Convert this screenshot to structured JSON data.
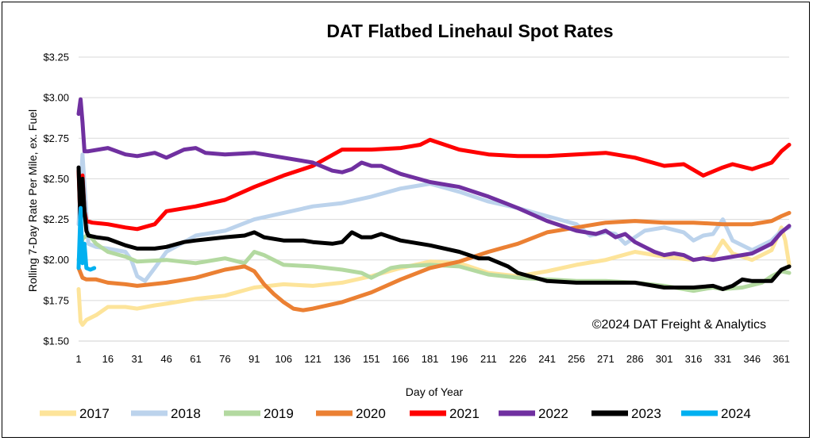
{
  "chart_data": {
    "type": "line",
    "title": "DAT Flatbed Linehaul Spot Rates",
    "xlabel": "Day of Year",
    "ylabel": "Rolling 7-Day Rate Per Mile, ex. Fuel",
    "annotation": "©2024 DAT Freight & Analytics",
    "xlim": [
      1,
      365
    ],
    "ylim": [
      1.5,
      3.25
    ],
    "x_ticks": [
      1,
      16,
      31,
      46,
      61,
      76,
      91,
      106,
      121,
      136,
      151,
      166,
      181,
      196,
      211,
      226,
      241,
      256,
      271,
      286,
      301,
      316,
      331,
      346,
      361
    ],
    "y_ticks": [
      {
        "value": 1.5,
        "label": "$1.50"
      },
      {
        "value": 1.75,
        "label": "$1.75"
      },
      {
        "value": 2.0,
        "label": "$2.00"
      },
      {
        "value": 2.25,
        "label": "$2.25"
      },
      {
        "value": 2.5,
        "label": "$2.50"
      },
      {
        "value": 2.75,
        "label": "$2.75"
      },
      {
        "value": 3.0,
        "label": "$3.00"
      },
      {
        "value": 3.25,
        "label": "$3.25"
      }
    ],
    "grid": true,
    "legend_position": "bottom",
    "series": [
      {
        "name": "2017",
        "color": "#FDE49A",
        "x": [
          1,
          2,
          3,
          5,
          10,
          16,
          25,
          31,
          40,
          46,
          61,
          76,
          91,
          106,
          121,
          136,
          151,
          166,
          181,
          196,
          211,
          226,
          241,
          256,
          271,
          286,
          301,
          316,
          326,
          331,
          336,
          346,
          356,
          361,
          363,
          365
        ],
        "y": [
          1.82,
          1.62,
          1.6,
          1.63,
          1.66,
          1.71,
          1.71,
          1.7,
          1.72,
          1.73,
          1.76,
          1.78,
          1.83,
          1.85,
          1.84,
          1.86,
          1.9,
          1.95,
          1.99,
          1.98,
          1.92,
          1.9,
          1.93,
          1.97,
          2.0,
          2.05,
          2.02,
          2.0,
          2.02,
          2.12,
          2.04,
          2.0,
          2.06,
          2.2,
          2.12,
          1.97
        ]
      },
      {
        "name": "2018",
        "color": "#BCD3EC",
        "x": [
          1,
          3,
          6,
          10,
          16,
          25,
          28,
          31,
          35,
          40,
          46,
          61,
          76,
          91,
          106,
          121,
          136,
          151,
          166,
          181,
          196,
          211,
          226,
          241,
          256,
          263,
          271,
          276,
          281,
          291,
          301,
          311,
          316,
          321,
          326,
          331,
          336,
          346,
          356,
          361,
          365
        ],
        "y": [
          2.22,
          2.65,
          2.1,
          2.08,
          2.07,
          2.05,
          2.0,
          1.9,
          1.87,
          1.95,
          2.05,
          2.15,
          2.18,
          2.25,
          2.29,
          2.33,
          2.35,
          2.39,
          2.44,
          2.47,
          2.42,
          2.36,
          2.32,
          2.27,
          2.22,
          2.15,
          2.17,
          2.16,
          2.1,
          2.18,
          2.2,
          2.17,
          2.12,
          2.15,
          2.16,
          2.25,
          2.12,
          2.06,
          2.12,
          2.18,
          2.2
        ]
      },
      {
        "name": "2019",
        "color": "#B3D9A0",
        "x": [
          1,
          3,
          6,
          10,
          16,
          25,
          31,
          46,
          61,
          76,
          86,
          91,
          96,
          106,
          121,
          136,
          146,
          151,
          161,
          166,
          181,
          196,
          211,
          226,
          241,
          256,
          271,
          286,
          301,
          311,
          316,
          326,
          331,
          341,
          351,
          356,
          361,
          365
        ],
        "y": [
          2.0,
          2.13,
          2.16,
          2.1,
          2.05,
          2.02,
          1.99,
          2.0,
          1.98,
          2.01,
          1.98,
          2.05,
          2.03,
          1.97,
          1.96,
          1.94,
          1.92,
          1.89,
          1.95,
          1.96,
          1.97,
          1.96,
          1.91,
          1.89,
          1.88,
          1.87,
          1.87,
          1.86,
          1.84,
          1.82,
          1.81,
          1.83,
          1.82,
          1.83,
          1.86,
          1.9,
          1.93,
          1.92
        ]
      },
      {
        "name": "2020",
        "color": "#EB8033",
        "x": [
          1,
          3,
          5,
          10,
          16,
          25,
          31,
          46,
          61,
          76,
          86,
          91,
          96,
          101,
          106,
          111,
          116,
          121,
          136,
          151,
          166,
          181,
          196,
          211,
          226,
          241,
          256,
          271,
          286,
          301,
          316,
          331,
          346,
          356,
          361,
          365
        ],
        "y": [
          1.95,
          1.89,
          1.88,
          1.88,
          1.86,
          1.85,
          1.84,
          1.86,
          1.89,
          1.94,
          1.96,
          1.93,
          1.85,
          1.79,
          1.74,
          1.7,
          1.69,
          1.7,
          1.74,
          1.8,
          1.88,
          1.95,
          1.99,
          2.05,
          2.1,
          2.17,
          2.2,
          2.23,
          2.24,
          2.23,
          2.23,
          2.22,
          2.22,
          2.24,
          2.27,
          2.29
        ]
      },
      {
        "name": "2021",
        "color": "#FF0000",
        "x": [
          1,
          2,
          3,
          4,
          5,
          8,
          16,
          25,
          31,
          40,
          46,
          61,
          76,
          91,
          106,
          121,
          136,
          151,
          166,
          176,
          181,
          186,
          196,
          211,
          226,
          241,
          256,
          271,
          286,
          301,
          311,
          321,
          331,
          336,
          346,
          356,
          361,
          365
        ],
        "y": [
          2.55,
          2.2,
          2.52,
          2.3,
          2.24,
          2.23,
          2.22,
          2.2,
          2.19,
          2.22,
          2.3,
          2.33,
          2.37,
          2.45,
          2.52,
          2.58,
          2.68,
          2.68,
          2.69,
          2.71,
          2.74,
          2.72,
          2.68,
          2.65,
          2.64,
          2.64,
          2.65,
          2.66,
          2.63,
          2.58,
          2.59,
          2.52,
          2.57,
          2.59,
          2.56,
          2.6,
          2.67,
          2.71
        ]
      },
      {
        "name": "2022",
        "color": "#7030A0",
        "x": [
          1,
          2,
          3,
          4,
          6,
          16,
          25,
          31,
          40,
          46,
          55,
          61,
          66,
          76,
          91,
          106,
          121,
          131,
          136,
          141,
          146,
          151,
          156,
          166,
          181,
          196,
          211,
          226,
          241,
          256,
          266,
          271,
          276,
          281,
          286,
          291,
          296,
          301,
          306,
          311,
          316,
          321,
          326,
          336,
          346,
          356,
          361,
          365
        ],
        "y": [
          2.9,
          2.99,
          2.85,
          2.67,
          2.67,
          2.69,
          2.65,
          2.64,
          2.66,
          2.63,
          2.68,
          2.69,
          2.66,
          2.65,
          2.66,
          2.63,
          2.6,
          2.55,
          2.54,
          2.56,
          2.6,
          2.58,
          2.58,
          2.53,
          2.48,
          2.45,
          2.39,
          2.32,
          2.24,
          2.18,
          2.16,
          2.18,
          2.14,
          2.16,
          2.11,
          2.08,
          2.05,
          2.03,
          2.04,
          2.03,
          2.0,
          2.01,
          2.0,
          2.02,
          2.04,
          2.1,
          2.17,
          2.21
        ]
      },
      {
        "name": "2023",
        "color": "#000000",
        "x": [
          1,
          2,
          3,
          4,
          5,
          6,
          10,
          16,
          25,
          31,
          40,
          46,
          55,
          61,
          76,
          86,
          91,
          96,
          106,
          116,
          121,
          131,
          136,
          141,
          146,
          151,
          156,
          166,
          181,
          196,
          206,
          211,
          221,
          226,
          241,
          256,
          271,
          286,
          301,
          316,
          326,
          331,
          336,
          341,
          346,
          356,
          361,
          365
        ],
        "y": [
          2.57,
          2.2,
          2.5,
          2.3,
          2.18,
          2.15,
          2.14,
          2.13,
          2.09,
          2.07,
          2.07,
          2.08,
          2.11,
          2.12,
          2.14,
          2.15,
          2.17,
          2.14,
          2.12,
          2.12,
          2.11,
          2.1,
          2.11,
          2.17,
          2.14,
          2.14,
          2.16,
          2.12,
          2.09,
          2.05,
          2.01,
          2.01,
          1.96,
          1.92,
          1.87,
          1.86,
          1.86,
          1.86,
          1.83,
          1.83,
          1.84,
          1.82,
          1.84,
          1.88,
          1.87,
          1.87,
          1.94,
          1.96
        ]
      },
      {
        "name": "2024",
        "color": "#00B0F0",
        "x": [
          1,
          2,
          3,
          4,
          5,
          7,
          9
        ],
        "y": [
          1.95,
          2.32,
          1.98,
          2.1,
          1.95,
          1.94,
          1.95
        ]
      }
    ]
  }
}
